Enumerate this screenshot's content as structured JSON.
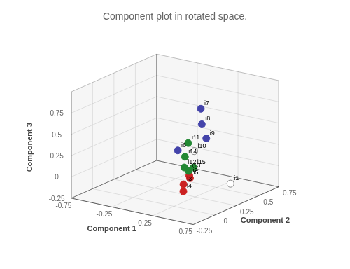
{
  "chart_data": {
    "type": "scatter3d",
    "title": "Component plot in rotated space.",
    "xlabel": "Component 1",
    "ylabel": "Component 2",
    "zlabel": "Component 3",
    "labels": [
      "i1",
      "i2",
      "i3",
      "i4",
      "i5",
      "i6",
      "i7",
      "i8",
      "i9",
      "i10",
      "i11",
      "i12",
      "i13",
      "i14",
      "i15"
    ],
    "x": [
      0.42,
      0.25,
      0.22,
      0.24,
      0.3,
      0.35,
      0.35,
      0.33,
      0.28,
      0.1,
      -0.1,
      -0.2,
      -0.18,
      -0.14,
      0.02
    ],
    "y": [
      0.5,
      0.18,
      0.14,
      0.12,
      0.14,
      -0.05,
      0.22,
      0.25,
      0.35,
      0.38,
      0.5,
      0.55,
      0.58,
      0.5,
      0.45
    ],
    "z": [
      -0.17,
      0.03,
      -0.06,
      -0.13,
      0.03,
      0.45,
      0.82,
      0.62,
      0.4,
      0.2,
      0.2,
      -0.13,
      -0.18,
      0.03,
      -0.04
    ],
    "colors": [
      "white",
      "#cc2222",
      "#cc2222",
      "#cc2222",
      "#cc2222",
      "#4444aa",
      "#4444aa",
      "#4444aa",
      "#4444aa",
      "white",
      "#228833",
      "#228833",
      "#228833",
      "#228833",
      "#228833"
    ],
    "xlim": [
      -0.75,
      0.75
    ],
    "ylim": [
      -0.25,
      0.75
    ],
    "zlim": [
      -0.25,
      1.0
    ],
    "xticks": [
      -0.75,
      -0.25,
      0.25,
      0.75
    ],
    "yticks": [
      -0.25,
      0,
      0.25,
      0.5,
      0.75
    ],
    "zticks": [
      -0.25,
      0,
      0.25,
      0.5,
      0.75
    ],
    "grid": true
  }
}
